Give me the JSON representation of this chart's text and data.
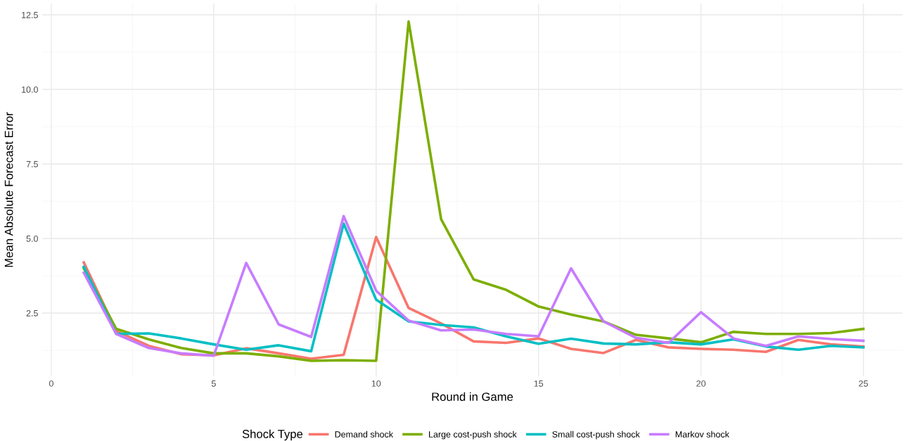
{
  "chart_data": {
    "type": "line",
    "xlabel": "Round in Game",
    "ylabel": "Mean Absolute Forecast Error",
    "legend_title": "Shock Type",
    "legend": "bottom",
    "grid": true,
    "marker": "none",
    "line_style": "solid",
    "x": [
      1,
      2,
      3,
      4,
      5,
      6,
      7,
      8,
      9,
      10,
      11,
      12,
      13,
      14,
      15,
      16,
      17,
      18,
      19,
      20,
      21,
      22,
      23,
      24,
      25
    ],
    "xlim": [
      -0.28,
      26.2
    ],
    "xticks": [
      0,
      5,
      10,
      15,
      20,
      25
    ],
    "ylim": [
      0.38,
      12.88
    ],
    "yticks": [
      {
        "value": 2.5,
        "label": "2.5"
      },
      {
        "value": 5,
        "label": "5.0"
      },
      {
        "value": 7.5,
        "label": "7.5"
      },
      {
        "value": 10,
        "label": "10.0"
      },
      {
        "value": 12.5,
        "label": "12.5"
      }
    ],
    "series": [
      {
        "name": "Demand shock",
        "color": "#f8766d",
        "values": [
          4.2,
          1.9,
          1.4,
          1.12,
          1.08,
          1.32,
          1.15,
          0.97,
          1.1,
          5.05,
          2.67,
          2.15,
          1.55,
          1.5,
          1.65,
          1.3,
          1.16,
          1.6,
          1.35,
          1.3,
          1.27,
          1.2,
          1.6,
          1.45,
          1.38
        ]
      },
      {
        "name": "Large cost-push shock",
        "color": "#7cae00",
        "values": [
          4.0,
          1.97,
          1.62,
          1.33,
          1.15,
          1.15,
          1.05,
          0.9,
          0.92,
          0.9,
          12.28,
          5.65,
          3.63,
          3.28,
          2.72,
          2.45,
          2.22,
          1.77,
          1.65,
          1.52,
          1.87,
          1.8,
          1.8,
          1.83,
          1.97
        ]
      },
      {
        "name": "Small cost-push shock",
        "color": "#00bfc4",
        "values": [
          4.05,
          1.8,
          1.82,
          1.65,
          1.45,
          1.27,
          1.42,
          1.22,
          5.5,
          2.95,
          2.22,
          2.1,
          2.02,
          1.72,
          1.47,
          1.64,
          1.48,
          1.45,
          1.52,
          1.45,
          1.62,
          1.38,
          1.27,
          1.4,
          1.35
        ]
      },
      {
        "name": "Markov shock",
        "color": "#c77cff",
        "values": [
          3.85,
          1.8,
          1.33,
          1.15,
          1.07,
          4.18,
          2.12,
          1.7,
          5.75,
          3.25,
          2.25,
          1.92,
          1.95,
          1.8,
          1.72,
          4.0,
          2.22,
          1.67,
          1.5,
          2.53,
          1.65,
          1.4,
          1.72,
          1.63,
          1.57
        ]
      }
    ]
  }
}
